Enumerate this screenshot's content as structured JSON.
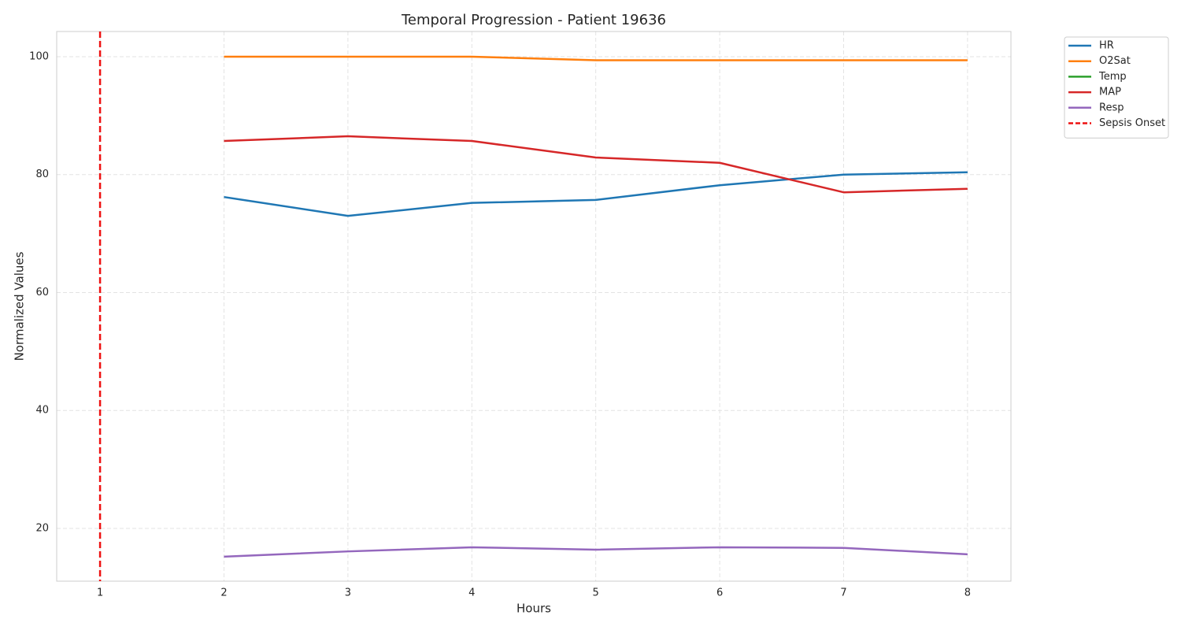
{
  "chart_data": {
    "type": "line",
    "title": "Temporal Progression - Patient 19636",
    "x_label": "Hours",
    "y_label": "Normalized Values",
    "x": [
      2,
      3,
      4,
      5,
      6,
      7,
      8
    ],
    "series": [
      {
        "name": "HR",
        "color": "#1f77b4",
        "values": [
          76.2,
          73.0,
          75.2,
          75.7,
          78.2,
          80.0,
          80.4
        ]
      },
      {
        "name": "O2Sat",
        "color": "#ff7f0e",
        "values": [
          100,
          100,
          100,
          99.4,
          99.4,
          99.4,
          99.4
        ]
      },
      {
        "name": "Temp",
        "color": "#2ca02c",
        "values": [
          null,
          null,
          null,
          null,
          null,
          null,
          null
        ]
      },
      {
        "name": "MAP",
        "color": "#d62728",
        "values": [
          85.7,
          86.5,
          85.7,
          82.9,
          82.0,
          77.0,
          77.6
        ]
      },
      {
        "name": "Resp",
        "color": "#9467bd",
        "values": [
          15.2,
          16.1,
          16.8,
          16.4,
          16.8,
          16.7,
          15.6
        ]
      }
    ],
    "vlines": [
      {
        "name": "Sepsis Onset",
        "x": 1,
        "color": "#ee1111",
        "dashed": true
      }
    ],
    "xlim": [
      0.65,
      8.35
    ],
    "ylim": [
      11.05,
      104.27
    ],
    "xticks": [
      1,
      2,
      3,
      4,
      5,
      6,
      7,
      8
    ],
    "yticks": [
      20,
      40,
      60,
      80,
      100
    ],
    "grid": true,
    "legend": "outside-upper-right"
  }
}
